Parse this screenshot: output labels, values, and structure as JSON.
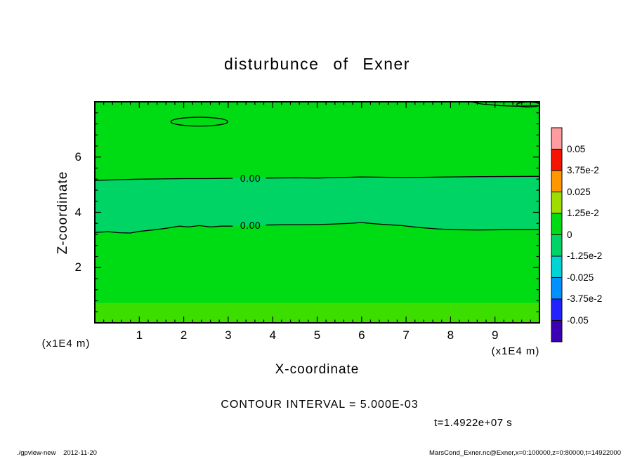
{
  "page": {
    "contour_interval_text": "CONTOUR INTERVAL = 5.000E-03",
    "time_text": "t=1.4922e+07 s",
    "footer_left": "./gpview-new 2012-11-20",
    "footer_right": "MarsCond_Exner.nc@Exner,x=0:100000,z=0:80000,t=14922000"
  },
  "chart_data": {
    "type": "heatmap",
    "subtype": "filled-contour-section",
    "title": "disturbunce of Exner",
    "xlabel": "X-coordinate",
    "ylabel": "Z-coordinate",
    "x_unit_left": "(x1E4 m)",
    "x_unit_right": "(x1E4 m)",
    "xlim": [
      0,
      10
    ],
    "ylim": [
      0,
      8
    ],
    "x_ticks": [
      "1",
      "2",
      "3",
      "4",
      "5",
      "6",
      "7",
      "8",
      "9"
    ],
    "x_tick_values": [
      1,
      2,
      3,
      4,
      5,
      6,
      7,
      8,
      9
    ],
    "y_ticks": [
      "2",
      "4",
      "6"
    ],
    "y_tick_values": [
      2,
      4,
      6
    ],
    "x_minor_step": 0.2,
    "y_minor_step": 0.4,
    "grid": false,
    "contour_interval": "5.000E-03",
    "time": "1.4922e+07 s",
    "colorbar": {
      "position": "right",
      "boundary_labels": [
        "0.05",
        "3.75e-2",
        "0.025",
        "1.25e-2",
        "0",
        "-1.25e-2",
        "-0.025",
        "-3.75e-2",
        "-0.05"
      ],
      "cell_colors": [
        "#ff9ca0",
        "#f51400",
        "#ff9800",
        "#9fdd00",
        "#00dc14",
        "#00d464",
        "#00d4d4",
        "#0090ff",
        "#2222ff",
        "#3c00b4"
      ]
    },
    "field": {
      "base_color": "#00dc14",
      "band_color": "#00d464",
      "bottom_strip_color": "#3cde00",
      "bottom_strip_top_z": 0.72
    },
    "zero_contours": [
      {
        "label": "0.00",
        "label_x": 3.5,
        "segments": [
          [
            [
              0,
              5.15
            ],
            [
              0.5,
              5.18
            ],
            [
              1,
              5.2
            ],
            [
              1.5,
              5.21
            ],
            [
              2,
              5.22
            ],
            [
              2.5,
              5.22
            ],
            [
              3.1,
              5.23
            ]
          ],
          [
            [
              3.85,
              5.24
            ],
            [
              4.5,
              5.25
            ],
            [
              5,
              5.24
            ],
            [
              5.5,
              5.26
            ],
            [
              6,
              5.28
            ],
            [
              6.5,
              5.27
            ],
            [
              7,
              5.26
            ],
            [
              7.5,
              5.27
            ],
            [
              8,
              5.28
            ],
            [
              8.7,
              5.29
            ],
            [
              10,
              5.3
            ]
          ]
        ]
      },
      {
        "label": "0.00",
        "label_x": 3.5,
        "segments": [
          [
            [
              0,
              3.27
            ],
            [
              0.3,
              3.3
            ],
            [
              0.55,
              3.26
            ],
            [
              0.8,
              3.25
            ],
            [
              1.0,
              3.31
            ],
            [
              1.3,
              3.36
            ],
            [
              1.6,
              3.42
            ],
            [
              1.9,
              3.5
            ],
            [
              2.1,
              3.47
            ],
            [
              2.35,
              3.52
            ],
            [
              2.6,
              3.47
            ],
            [
              2.85,
              3.5
            ],
            [
              3.1,
              3.5
            ]
          ],
          [
            [
              3.85,
              3.54
            ],
            [
              4.3,
              3.55
            ],
            [
              4.8,
              3.55
            ],
            [
              5.3,
              3.57
            ],
            [
              5.7,
              3.6
            ],
            [
              6.0,
              3.63
            ],
            [
              6.2,
              3.6
            ],
            [
              6.5,
              3.56
            ],
            [
              6.9,
              3.52
            ],
            [
              7.3,
              3.45
            ],
            [
              7.7,
              3.4
            ],
            [
              8.1,
              3.37
            ],
            [
              8.6,
              3.36
            ],
            [
              9.2,
              3.37
            ],
            [
              10,
              3.37
            ]
          ]
        ]
      }
    ],
    "closed_contours": [
      {
        "type": "ellipse",
        "cx": 2.35,
        "cz": 7.28,
        "rx": 0.64,
        "rz": 0.16
      },
      {
        "type": "ellipse",
        "cx": 9.75,
        "cz": 7.9,
        "rx": 0.26,
        "rz": 0.09
      }
    ],
    "open_contours": [
      [
        [
          8.38,
          8.02
        ],
        [
          8.7,
          7.92
        ],
        [
          9.1,
          7.86
        ],
        [
          9.5,
          7.84
        ],
        [
          10,
          7.86
        ]
      ]
    ]
  }
}
